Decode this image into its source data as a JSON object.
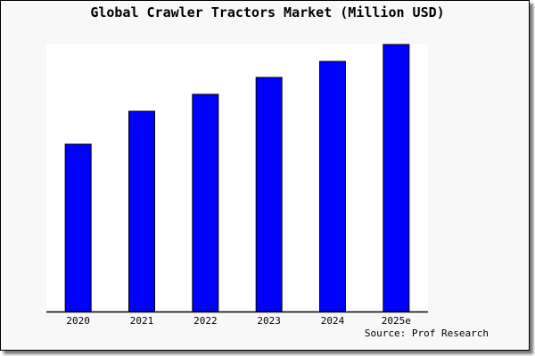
{
  "chart_data": {
    "type": "bar",
    "title": "Global Crawler Tractors Market (Million USD)",
    "categories": [
      "2020",
      "2021",
      "2022",
      "2023",
      "2024",
      "2025e"
    ],
    "values": [
      188,
      225,
      244,
      263,
      281,
      300
    ],
    "ylim": [
      0,
      300
    ],
    "xlabel": "",
    "ylabel": "",
    "grid": false,
    "bar_color": "#0000ff",
    "source": "Source: Prof Research"
  }
}
